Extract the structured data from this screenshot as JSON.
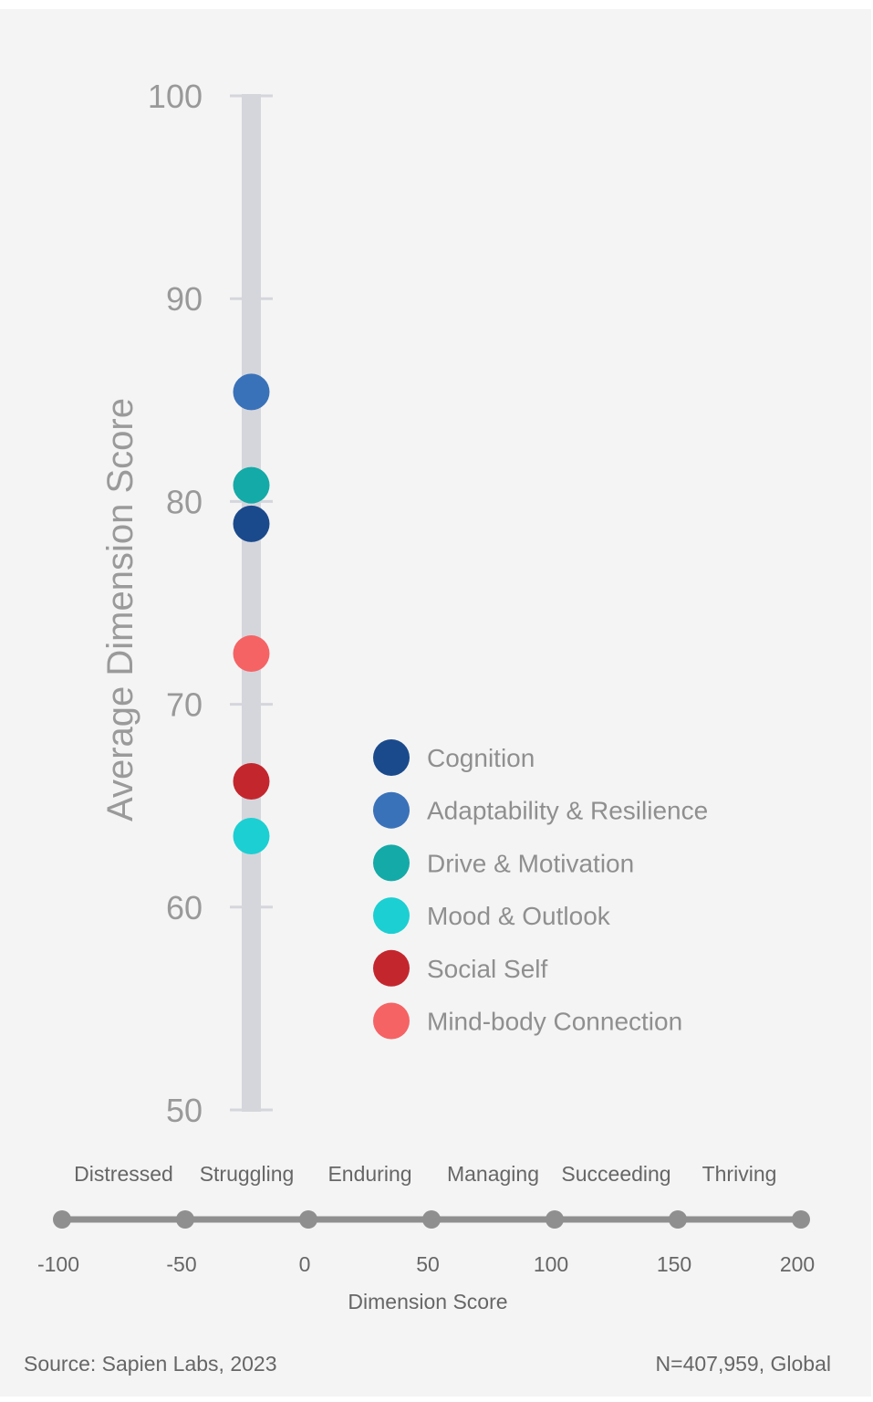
{
  "chart_data": {
    "type": "scatter",
    "ylabel": "Average Dimension Score",
    "ylim": [
      50,
      100
    ],
    "yticks": [
      100,
      90,
      80,
      70,
      60,
      50
    ],
    "series": [
      {
        "name": "Cognition",
        "value": 78.9,
        "color": "#1b4a8c"
      },
      {
        "name": "Adaptability & Resilience",
        "value": 85.4,
        "color": "#3a72b9"
      },
      {
        "name": "Drive & Motivation",
        "value": 80.8,
        "color": "#14aaa7"
      },
      {
        "name": "Mood & Outlook",
        "value": 63.5,
        "color": "#1ccfd2"
      },
      {
        "name": "Social Self",
        "value": 66.2,
        "color": "#c4262e"
      },
      {
        "name": "Mind-body Connection",
        "value": 72.5,
        "color": "#f56365"
      }
    ],
    "legend_position": "center-right",
    "scale": {
      "xlabel": "Dimension Score",
      "xlim": [
        -100,
        200
      ],
      "ticks": [
        "-100",
        "-50",
        "0",
        "50",
        "100",
        "150",
        "200"
      ],
      "tick_values": [
        -100,
        -50,
        0,
        50,
        100,
        150,
        200
      ],
      "categories": [
        "Distressed",
        "Struggling",
        "Enduring",
        "Managing",
        "Succeeding",
        "Thriving"
      ]
    }
  },
  "footer": {
    "source": "Source: Sapien Labs, 2023",
    "sample": "N=407,959, Global"
  }
}
